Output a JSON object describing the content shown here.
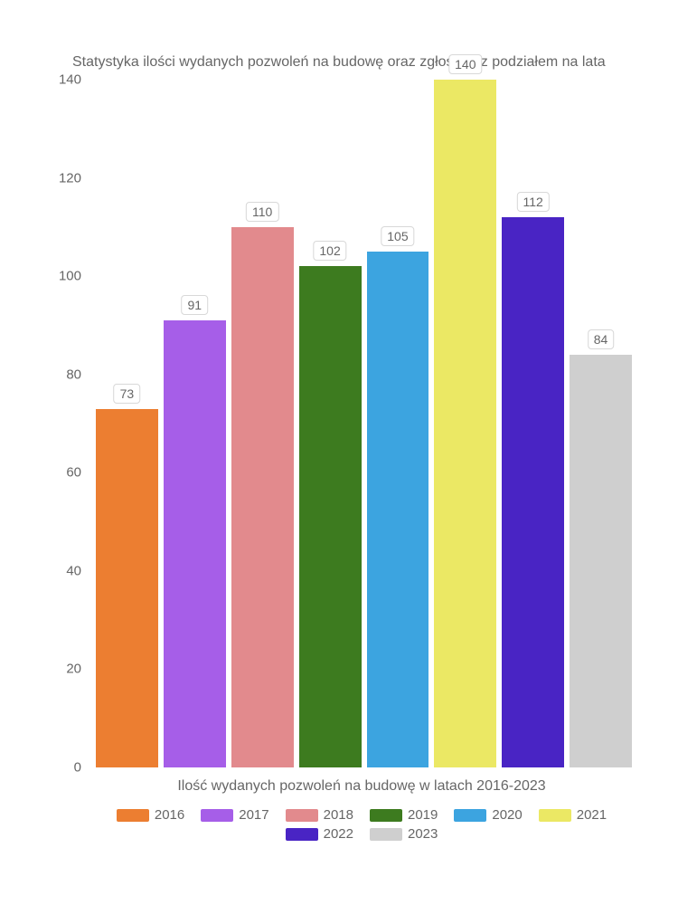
{
  "chart": {
    "type": "bar",
    "title": "Statystyka ilości wydanych pozwoleń na budowę oraz zgłoszeń z podziałem na lata",
    "title_fontsize": 16,
    "title_color": "#666666",
    "x_label": "Ilość wydanych pozwoleń na budowę w latach 2016-2023",
    "label_color": "#666666",
    "label_fontsize": 16,
    "background_color": "#ffffff",
    "ylim": [
      0,
      140
    ],
    "ytick_step": 20,
    "yticks": [
      0,
      20,
      40,
      60,
      80,
      100,
      120,
      140
    ],
    "tick_color": "#666666",
    "tick_fontsize": 15,
    "bar_width": 0.88,
    "data_label_bg": "#ffffff",
    "data_label_border": "#d8d8d8",
    "data_label_color": "#666666",
    "series": [
      {
        "year": "2016",
        "value": 73,
        "color": "#ec7e31"
      },
      {
        "year": "2017",
        "value": 91,
        "color": "#a65ee8"
      },
      {
        "year": "2018",
        "value": 110,
        "color": "#e28a8d"
      },
      {
        "year": "2019",
        "value": 102,
        "color": "#3d7b1f"
      },
      {
        "year": "2020",
        "value": 105,
        "color": "#3ca4e0"
      },
      {
        "year": "2021",
        "value": 140,
        "color": "#ebe864"
      },
      {
        "year": "2022",
        "value": 112,
        "color": "#4924c4"
      },
      {
        "year": "2023",
        "value": 84,
        "color": "#cfcfcf"
      }
    ]
  }
}
